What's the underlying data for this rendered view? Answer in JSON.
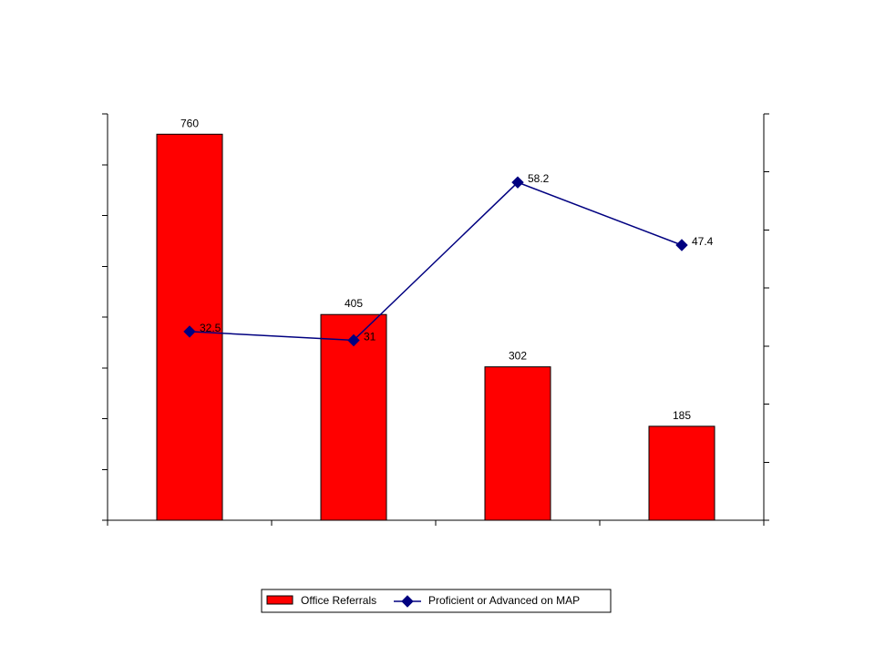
{
  "chart_data": {
    "type": "bar",
    "categories": [
      "",
      "",
      "",
      ""
    ],
    "title": "",
    "xlabel": "",
    "ylabel": "",
    "ylim": [
      0,
      800
    ],
    "y2lim": [
      0,
      70
    ],
    "grid": false,
    "legend_position": "bottom",
    "series": [
      {
        "name": "Office Referrals",
        "type": "bar",
        "axis": "left",
        "color": "#ff0000",
        "values": [
          760,
          405,
          302,
          185
        ],
        "labels": [
          "760",
          "405",
          "302",
          "185"
        ]
      },
      {
        "name": "Proficient or Advanced on MAP",
        "type": "line",
        "axis": "right",
        "color": "#000080",
        "marker": "diamond",
        "values": [
          32.5,
          31,
          58.2,
          47.4
        ],
        "labels": [
          "32.5",
          "31",
          "58.2",
          "47.4"
        ]
      }
    ]
  }
}
